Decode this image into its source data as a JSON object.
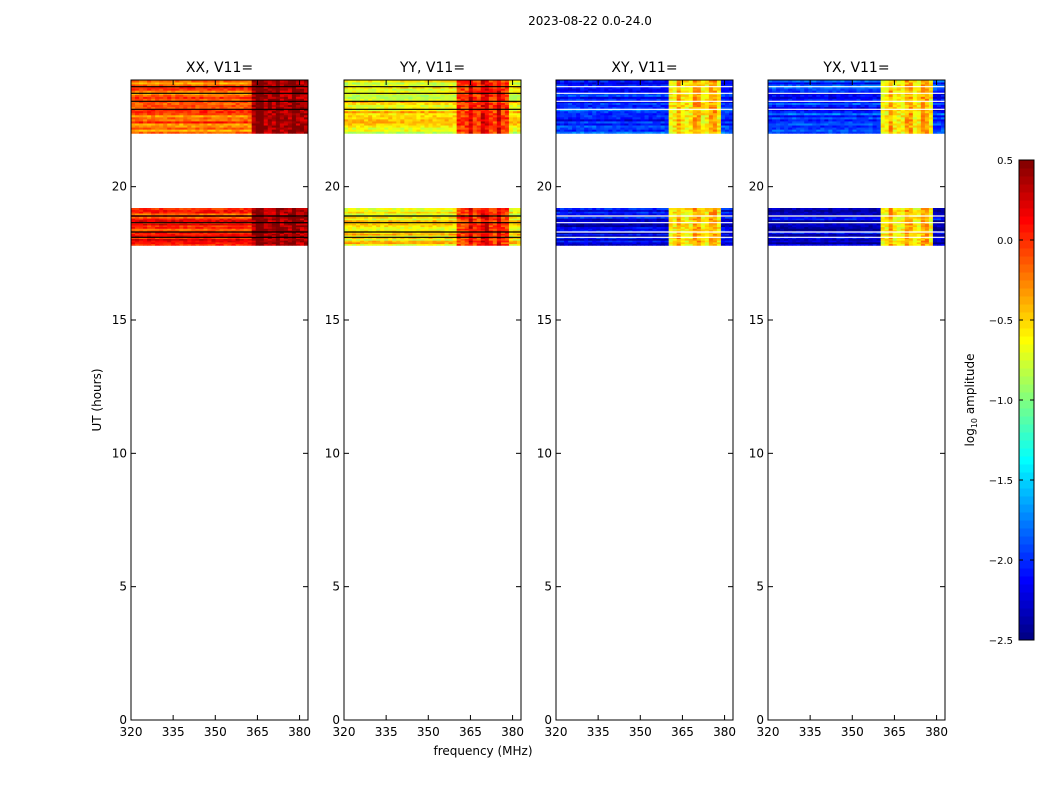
{
  "suptitle": "2023-08-22 0.0-24.0",
  "chart_data": {
    "type": "heatmap",
    "shared": {
      "xlabel": "frequency (MHz)",
      "ylabel": "UT (hours)",
      "xlim": [
        320,
        383
      ],
      "ylim": [
        0,
        24
      ],
      "xticks": [
        320,
        335,
        350,
        365,
        380
      ],
      "yticks": [
        0,
        5,
        10,
        15,
        20
      ],
      "colormap": "jet",
      "data_rows_ut": [
        [
          17.8,
          19.2
        ],
        [
          22.0,
          24.0
        ]
      ],
      "dark_lines_ut": [
        18.1,
        18.3,
        18.65,
        18.9,
        23.2,
        23.5,
        22.9,
        23.75
      ]
    },
    "panels": [
      {
        "title": "XX, V11=",
        "base_low": 0.0,
        "base_high": -0.15,
        "hot_band_mhz": [
          363,
          383
        ],
        "hot_value": 0.35,
        "band_pattern": [
          365,
          367,
          371,
          373,
          377,
          379
        ]
      },
      {
        "title": "YY, V11=",
        "base_low": -0.55,
        "base_high": -0.6,
        "hot_band_mhz": [
          360,
          378
        ],
        "hot_value": -0.05,
        "band_pattern": [
          364,
          366,
          369,
          371,
          374,
          376
        ]
      },
      {
        "title": "XY, V11=",
        "base_low": -2.2,
        "base_high": -2.0,
        "hot_band_mhz": [
          360,
          378
        ],
        "hot_value": -0.6,
        "band_pattern": [
          363,
          365,
          369,
          371,
          375,
          377
        ]
      },
      {
        "title": "YX, V11=",
        "base_low": -2.25,
        "base_high": -2.0,
        "hot_band_mhz": [
          360,
          378
        ],
        "hot_value": -0.6,
        "band_pattern": [
          363,
          365,
          369,
          371,
          375,
          377
        ]
      }
    ],
    "colorbar": {
      "label_base": "log",
      "label_sub": "10",
      "label_rest": " amplitude",
      "range": [
        -2.5,
        0.5
      ],
      "ticks": [
        {
          "value": 0.5,
          "label": "0.5"
        },
        {
          "value": 0.0,
          "label": "0.0"
        },
        {
          "value": -0.5,
          "label": "−0.5"
        },
        {
          "value": -1.0,
          "label": "−1.0"
        },
        {
          "value": -1.5,
          "label": "−1.5"
        },
        {
          "value": -2.0,
          "label": "−2.0"
        },
        {
          "value": -2.5,
          "label": "−2.5"
        }
      ]
    }
  }
}
